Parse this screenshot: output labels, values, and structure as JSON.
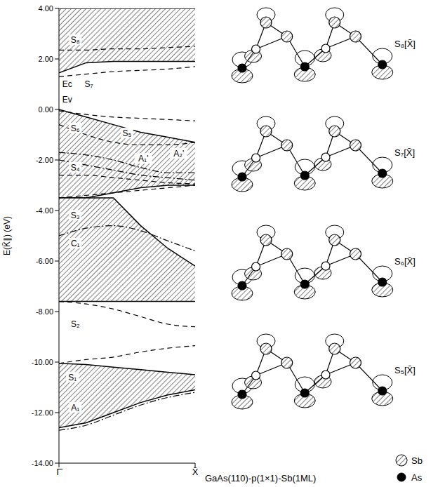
{
  "chart_data": {
    "type": "line",
    "y_label": "E(K̄∥) (eV)",
    "x": [
      0,
      0.2,
      0.4,
      0.6,
      0.8,
      1.0
    ],
    "xlim": [
      0,
      1
    ],
    "xticks": [
      {
        "value": 0,
        "label": "Γ̄"
      },
      {
        "value": 1,
        "label": "X̄"
      }
    ],
    "ylim": [
      -14,
      4
    ],
    "yticks": [
      {
        "value": 4,
        "label": "4.00"
      },
      {
        "value": 2,
        "label": "2.00"
      },
      {
        "value": 0,
        "label": "0.00"
      },
      {
        "value": -2,
        "label": "-2.00"
      },
      {
        "value": -4,
        "label": "-4.00"
      },
      {
        "value": -6,
        "label": "-6.00"
      },
      {
        "value": -8,
        "label": "-8.00"
      },
      {
        "value": -10,
        "label": "-10.00"
      },
      {
        "value": -12,
        "label": "-12.00"
      },
      {
        "value": -14,
        "label": "-14.00"
      }
    ],
    "grid": false,
    "regions": [
      {
        "lower": [
          1.45,
          1.85,
          1.9,
          1.9,
          1.9,
          1.9
        ],
        "upper": [
          4,
          4,
          4,
          4,
          4,
          4
        ]
      },
      {
        "lower": [
          -3.5,
          -3.5,
          -3.3,
          -3.1,
          -3.0,
          -3.0
        ],
        "upper": [
          0,
          -0.3,
          -0.6,
          -0.9,
          -1.1,
          -1.3
        ]
      },
      {
        "lower": [
          -7.6,
          -7.6,
          -7.6,
          -7.6,
          -7.6,
          -7.6
        ],
        "upper": [
          -3.5,
          -3.5,
          -3.5,
          -4.6,
          -5.5,
          -6.2
        ]
      },
      {
        "lower": [
          -12.6,
          -12.4,
          -12.0,
          -11.6,
          -11.3,
          -11.1
        ],
        "upper": [
          -10.05,
          -10.1,
          -10.2,
          -10.3,
          -10.4,
          -10.5
        ]
      }
    ],
    "series": [
      {
        "values": [
          2.35,
          2.35,
          2.4,
          2.4,
          2.45,
          2.5
        ],
        "line_style": "dashed"
      },
      {
        "values": [
          1.3,
          1.4,
          1.5,
          1.55,
          1.6,
          1.7
        ],
        "line_style": "dashed"
      },
      {
        "values": [
          -0.05,
          -0.2,
          -0.3,
          -0.35,
          -0.4,
          -0.45
        ],
        "line_style": "dashed"
      },
      {
        "values": [
          -0.6,
          -1.0,
          -1.3,
          -1.4,
          -1.4,
          -1.3
        ],
        "line_style": "dashed"
      },
      {
        "values": [
          -1.7,
          -1.8,
          -2.0,
          -2.3,
          -2.5,
          -2.5
        ],
        "line_style": "dashdot"
      },
      {
        "values": [
          -2.0,
          -2.2,
          -2.4,
          -2.6,
          -2.7,
          -2.8
        ],
        "line_style": "dashdot"
      },
      {
        "values": [
          -2.6,
          -2.6,
          -2.7,
          -2.8,
          -2.9,
          -2.95
        ],
        "line_style": "dashed"
      },
      {
        "values": [
          -3.5,
          -3.4,
          -3.3,
          -3.2,
          -3.1,
          -3.0
        ],
        "line_style": "dashed"
      },
      {
        "values": [
          -5.0,
          -4.7,
          -4.6,
          -4.8,
          -5.2,
          -5.6
        ],
        "line_style": "dashdot"
      },
      {
        "values": [
          -7.6,
          -7.7,
          -7.9,
          -8.2,
          -8.5,
          -8.6
        ],
        "line_style": "dashed"
      },
      {
        "values": [
          -10.05,
          -9.9,
          -9.8,
          -9.6,
          -9.45,
          -9.35
        ],
        "line_style": "dashed"
      },
      {
        "values": [
          -12.7,
          -12.5,
          -12.1,
          -11.7,
          -11.4,
          -11.2
        ],
        "line_style": "dashdot"
      }
    ],
    "annotations": [
      {
        "text": "S₈",
        "x": 0.12,
        "y": 2.75
      },
      {
        "text": "Ec",
        "x": 0.06,
        "y": 1.0
      },
      {
        "text": "S₇",
        "x": 0.22,
        "y": 1.0
      },
      {
        "text": "Ev",
        "x": 0.06,
        "y": 0.4
      },
      {
        "text": "S₆",
        "x": 0.12,
        "y": -0.75
      },
      {
        "text": "S₅",
        "x": 0.5,
        "y": -0.95
      },
      {
        "text": "S₄",
        "x": 0.12,
        "y": -2.3
      },
      {
        "text": "A₁'",
        "x": 0.62,
        "y": -1.95
      },
      {
        "text": "A₂'",
        "x": 0.88,
        "y": -1.75
      },
      {
        "text": "S₃",
        "x": 0.12,
        "y": -4.2
      },
      {
        "text": "C₁",
        "x": 0.12,
        "y": -5.3
      },
      {
        "text": "S₂",
        "x": 0.12,
        "y": -8.5
      },
      {
        "text": "S₁",
        "x": 0.1,
        "y": -10.6
      },
      {
        "text": "A₁",
        "x": 0.12,
        "y": -11.8
      }
    ]
  },
  "diagram": {
    "title": "GaAs(110)-p(1×1)-Sb(1ML)",
    "panels": [
      "S₈[X̄]",
      "S₇[X̄]",
      "S₆[X̄]",
      "S₅[X̄]"
    ],
    "legend": [
      {
        "label": "Sb",
        "marker": "hatched"
      },
      {
        "label": "As",
        "marker": "filled"
      }
    ]
  }
}
